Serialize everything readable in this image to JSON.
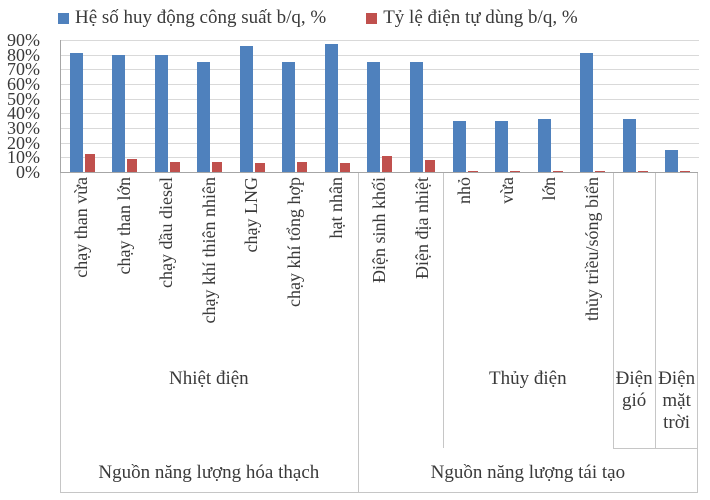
{
  "colors": {
    "series_blue": "#4F81BD",
    "series_red": "#C0504D",
    "gridline": "#d9d9d9",
    "axis_line": "#a6a6a6",
    "divider": "#c6c6c6",
    "text": "#3a3a3a"
  },
  "chart_data": {
    "type": "bar",
    "title": "",
    "legend_position": "top",
    "grid": true,
    "ylim": [
      0,
      90
    ],
    "y_ticks": [
      "90%",
      "80%",
      "70%",
      "60%",
      "50%",
      "40%",
      "30%",
      "20%",
      "10%",
      "0%"
    ],
    "categories": [
      "chạy than vừa",
      "chạy than lớn",
      "chạy dầu diesel",
      "chạy khí thiên nhiên",
      "chạy LNG",
      "chạy khí tổng hợp",
      "hạt nhân",
      "Điện sinh khối",
      "Điện địa nhiệt",
      "nhỏ",
      "vừa",
      "lớn",
      "thủy triều/sóng biển",
      "",
      ""
    ],
    "series": [
      {
        "name": "Hệ số huy động công suất b/q, %",
        "color": "#4F81BD",
        "values": [
          81,
          80,
          80,
          75,
          86,
          75,
          87,
          75,
          75,
          35,
          35,
          36,
          81,
          36,
          15
        ]
      },
      {
        "name": "Tỷ lệ điện tự dùng b/q, %",
        "color": "#C0504D",
        "values": [
          12,
          9,
          7,
          7,
          6,
          7,
          6,
          11,
          8,
          1,
          1,
          1,
          1,
          1,
          1
        ]
      }
    ],
    "group_level_1": [
      {
        "label": "Nhiệt điện",
        "span": 7
      },
      {
        "label": "",
        "span": 2
      },
      {
        "label": "Thủy điện",
        "span": 4
      },
      {
        "label": "Điện gió",
        "span": 1
      },
      {
        "label": "Điện mặt trời",
        "span": 1
      }
    ],
    "group_level_2": [
      {
        "label": "Nguồn năng lượng hóa thạch",
        "span": 7
      },
      {
        "label": "Nguồn năng lượng tái tạo",
        "span": 8
      }
    ]
  }
}
